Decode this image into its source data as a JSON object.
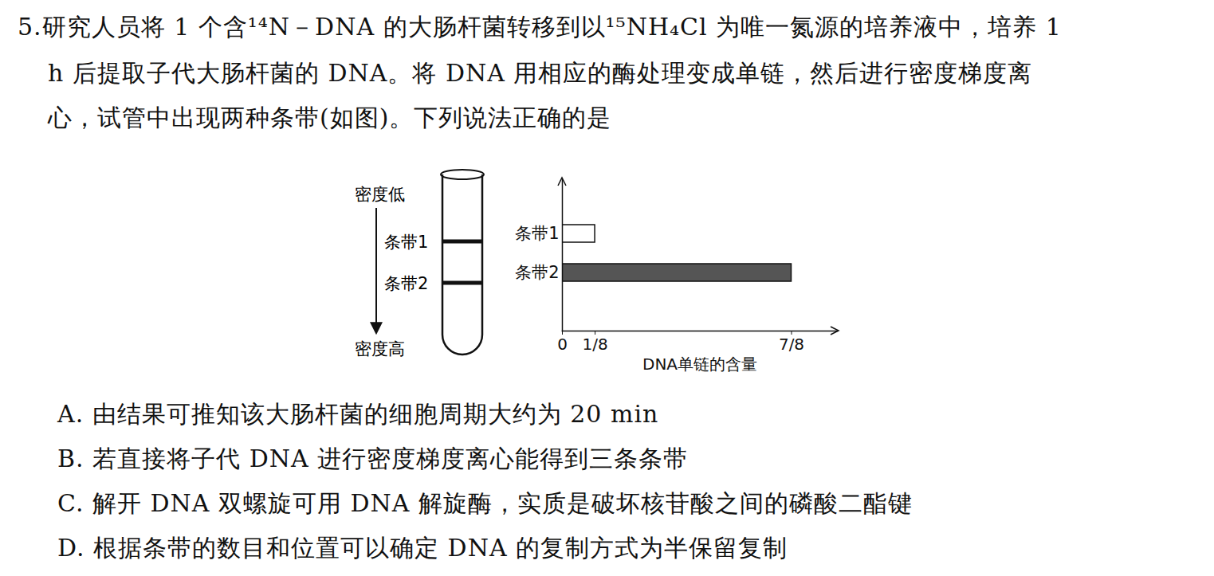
{
  "question": {
    "lines": [
      "5.研究人员将 1 个含¹⁴N－DNA 的大肠杆菌转移到以¹⁵NH₄Cl 为唯一氮源的培养液中，培养 1",
      "h 后提取子代大肠杆菌的 DNA。将 DNA 用相应的酶处理变成单链，然后进行密度梯度离",
      "心，试管中出现两种条带(如图)。下列说法正确的是"
    ]
  },
  "tube": {
    "top_label": "密度低",
    "bottom_label": "密度高",
    "bands": [
      "条带1",
      "条带2"
    ]
  },
  "chart_data": {
    "type": "bar",
    "orientation": "horizontal",
    "categories": [
      "条带1",
      "条带2"
    ],
    "values": [
      0.125,
      0.875
    ],
    "colors": [
      "#ffffff",
      "#555555"
    ],
    "xlim": [
      0,
      1.05
    ],
    "xticks": [
      0,
      {
        "value": 0.125,
        "label": "1/8"
      },
      {
        "value": 0.875,
        "label": "7/8"
      }
    ],
    "x_label": "DNA单链的含量",
    "grid": true
  },
  "options": [
    "A. 由结果可推知该大肠杆菌的细胞周期大约为 20 min",
    "B. 若直接将子代 DNA 进行密度梯度离心能得到三条条带",
    "C. 解开 DNA 双螺旋可用 DNA 解旋酶，实质是破坏核苷酸之间的磷酸二酯键",
    "D. 根据条带的数目和位置可以确定 DNA 的复制方式为半保留复制"
  ]
}
